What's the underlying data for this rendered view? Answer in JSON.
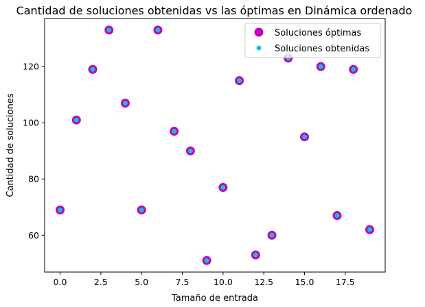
{
  "chart_data": {
    "type": "scatter",
    "title": "Cantidad de soluciones obtenidas vs las óptimas en Dinámica ordenado",
    "xlabel": "Tamaño de entrada",
    "ylabel": "Cantidad de soluciones",
    "xlim": [
      -0.95,
      19.95
    ],
    "ylim": [
      46.9,
      137.1
    ],
    "x_ticks": [
      0.0,
      2.5,
      5.0,
      7.5,
      10.0,
      12.5,
      15.0,
      17.5
    ],
    "x_tick_labels": [
      "0.0",
      "2.5",
      "5.0",
      "7.5",
      "10.0",
      "12.5",
      "15.0",
      "17.5"
    ],
    "y_ticks": [
      60,
      80,
      100,
      120
    ],
    "y_tick_labels": [
      "60",
      "80",
      "100",
      "120"
    ],
    "grid": false,
    "legend_position": "top-right",
    "series": [
      {
        "name": "Soluciones óptimas",
        "color": "#c000c0",
        "marker": "large-circle",
        "x": [
          0,
          1,
          2,
          3,
          4,
          5,
          6,
          7,
          8,
          9,
          10,
          11,
          12,
          13,
          14,
          15,
          16,
          17,
          18,
          19
        ],
        "y": [
          69,
          101,
          119,
          133,
          107,
          69,
          133,
          97,
          90,
          51,
          77,
          115,
          53,
          60,
          123,
          95,
          120,
          67,
          119,
          62
        ]
      },
      {
        "name": "Soluciones obtenidas",
        "color": "#17becf",
        "marker": "small-circle",
        "x": [
          0,
          1,
          2,
          3,
          4,
          5,
          6,
          7,
          8,
          9,
          10,
          11,
          12,
          13,
          14,
          15,
          16,
          17,
          18,
          19
        ],
        "y": [
          69,
          101,
          119,
          133,
          107,
          69,
          133,
          97,
          90,
          51,
          77,
          115,
          53,
          60,
          123,
          95,
          120,
          67,
          119,
          62
        ]
      }
    ]
  }
}
